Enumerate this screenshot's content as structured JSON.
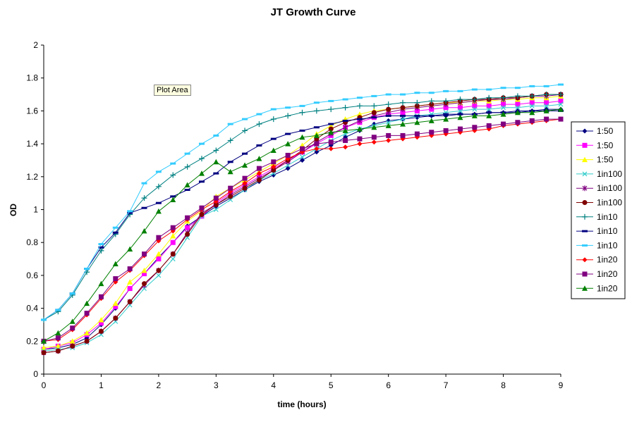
{
  "tooltip": "Plot Area",
  "chart_data": {
    "type": "line",
    "title": "JT Growth Curve",
    "xlabel": "time (hours)",
    "ylabel": "OD",
    "xlim": [
      0,
      9
    ],
    "ylim": [
      0,
      2
    ],
    "xticks": [
      "0",
      "1",
      "2",
      "3",
      "4",
      "5",
      "6",
      "7",
      "8",
      "9"
    ],
    "yticks": [
      "0",
      "0.2",
      "0.4",
      "0.6",
      "0.8",
      "1",
      "1.2",
      "1.4",
      "1.6",
      "1.8",
      "2"
    ],
    "grid": false,
    "legend_position": "right",
    "x": [
      0,
      0.25,
      0.5,
      0.75,
      1,
      1.25,
      1.5,
      1.75,
      2,
      2.25,
      2.5,
      2.75,
      3,
      3.25,
      3.5,
      3.75,
      4,
      4.25,
      4.5,
      4.75,
      5,
      5.25,
      5.5,
      5.75,
      6,
      6.25,
      6.5,
      6.75,
      7,
      7.25,
      7.5,
      7.75,
      8,
      8.25,
      8.5,
      8.75,
      9
    ],
    "series": [
      {
        "name": "1:50",
        "color": "#000080",
        "marker": "diamond",
        "values": [
          0.15,
          0.16,
          0.18,
          0.22,
          0.3,
          0.4,
          0.52,
          0.61,
          0.71,
          0.8,
          0.9,
          0.96,
          1.02,
          1.07,
          1.12,
          1.17,
          1.21,
          1.25,
          1.3,
          1.35,
          1.39,
          1.44,
          1.48,
          1.52,
          1.54,
          1.55,
          1.56,
          1.57,
          1.57,
          1.58,
          1.58,
          1.59,
          1.59,
          1.6,
          1.6,
          1.61,
          1.61
        ]
      },
      {
        "name": "1:50",
        "color": "#ff00ff",
        "marker": "square",
        "values": [
          0.15,
          0.17,
          0.19,
          0.24,
          0.31,
          0.41,
          0.52,
          0.61,
          0.7,
          0.8,
          0.89,
          0.96,
          1.04,
          1.1,
          1.15,
          1.2,
          1.25,
          1.3,
          1.35,
          1.4,
          1.45,
          1.5,
          1.53,
          1.56,
          1.58,
          1.59,
          1.6,
          1.61,
          1.62,
          1.62,
          1.63,
          1.63,
          1.64,
          1.64,
          1.65,
          1.65,
          1.66
        ]
      },
      {
        "name": "1:50",
        "color": "#ffff00",
        "marker": "triangle",
        "values": [
          0.16,
          0.17,
          0.2,
          0.25,
          0.33,
          0.43,
          0.56,
          0.63,
          0.73,
          0.84,
          0.93,
          0.99,
          1.08,
          1.13,
          1.18,
          1.23,
          1.28,
          1.33,
          1.39,
          1.46,
          1.51,
          1.55,
          1.58,
          1.6,
          1.61,
          1.62,
          1.63,
          1.64,
          1.65,
          1.65,
          1.66,
          1.66,
          1.67,
          1.67,
          1.68,
          1.68,
          1.69
        ]
      },
      {
        "name": "1in100",
        "color": "#33cccc",
        "marker": "x",
        "values": [
          0.14,
          0.15,
          0.16,
          0.19,
          0.24,
          0.32,
          0.42,
          0.52,
          0.6,
          0.7,
          0.83,
          0.96,
          1.0,
          1.06,
          1.12,
          1.18,
          1.22,
          1.27,
          1.32,
          1.37,
          1.42,
          1.46,
          1.49,
          1.51,
          1.53,
          1.55,
          1.57,
          1.58,
          1.59,
          1.6,
          1.61,
          1.61,
          1.62,
          1.62,
          1.63,
          1.63,
          1.64
        ]
      },
      {
        "name": "1in100",
        "color": "#800080",
        "marker": "star",
        "values": [
          0.13,
          0.14,
          0.17,
          0.2,
          0.26,
          0.34,
          0.44,
          0.54,
          0.63,
          0.73,
          0.86,
          0.98,
          1.03,
          1.09,
          1.14,
          1.19,
          1.24,
          1.29,
          1.35,
          1.41,
          1.46,
          1.5,
          1.54,
          1.57,
          1.59,
          1.61,
          1.62,
          1.63,
          1.64,
          1.65,
          1.66,
          1.67,
          1.67,
          1.68,
          1.69,
          1.69,
          1.7
        ]
      },
      {
        "name": "1in100",
        "color": "#800000",
        "marker": "circle",
        "values": [
          0.13,
          0.14,
          0.17,
          0.2,
          0.26,
          0.34,
          0.44,
          0.55,
          0.63,
          0.73,
          0.85,
          0.97,
          1.03,
          1.08,
          1.13,
          1.18,
          1.24,
          1.3,
          1.36,
          1.43,
          1.49,
          1.53,
          1.56,
          1.59,
          1.61,
          1.62,
          1.63,
          1.64,
          1.65,
          1.66,
          1.67,
          1.67,
          1.68,
          1.68,
          1.69,
          1.7,
          1.7
        ]
      },
      {
        "name": "1in10",
        "color": "#008080",
        "marker": "plus",
        "values": [
          0.33,
          0.38,
          0.48,
          0.62,
          0.75,
          0.85,
          0.97,
          1.07,
          1.14,
          1.21,
          1.26,
          1.31,
          1.36,
          1.42,
          1.48,
          1.52,
          1.55,
          1.57,
          1.59,
          1.6,
          1.61,
          1.62,
          1.63,
          1.63,
          1.64,
          1.65,
          1.65,
          1.66,
          1.66,
          1.67,
          1.67,
          1.68,
          1.68,
          1.69,
          1.69,
          1.7,
          1.7
        ]
      },
      {
        "name": "1in10",
        "color": "#000080",
        "marker": "dash",
        "values": [
          0.33,
          0.39,
          0.49,
          0.64,
          0.77,
          0.86,
          0.98,
          1.01,
          1.04,
          1.08,
          1.12,
          1.17,
          1.22,
          1.29,
          1.34,
          1.39,
          1.43,
          1.46,
          1.48,
          1.5,
          1.52,
          1.54,
          1.55,
          1.56,
          1.57,
          1.57,
          1.57,
          1.57,
          1.58,
          1.58,
          1.58,
          1.59,
          1.59,
          1.59,
          1.6,
          1.6,
          1.6
        ]
      },
      {
        "name": "1in10",
        "color": "#33ccff",
        "marker": "dash",
        "values": [
          0.33,
          0.39,
          0.49,
          0.64,
          0.79,
          0.89,
          0.99,
          1.16,
          1.23,
          1.28,
          1.34,
          1.4,
          1.45,
          1.52,
          1.55,
          1.58,
          1.61,
          1.62,
          1.63,
          1.65,
          1.66,
          1.67,
          1.68,
          1.69,
          1.7,
          1.7,
          1.71,
          1.71,
          1.72,
          1.72,
          1.73,
          1.73,
          1.74,
          1.74,
          1.75,
          1.75,
          1.76
        ]
      },
      {
        "name": "1in20",
        "color": "#ff0000",
        "marker": "diamond",
        "values": [
          0.2,
          0.21,
          0.27,
          0.36,
          0.46,
          0.56,
          0.63,
          0.72,
          0.81,
          0.87,
          0.94,
          1.0,
          1.05,
          1.11,
          1.16,
          1.22,
          1.26,
          1.31,
          1.35,
          1.37,
          1.37,
          1.38,
          1.4,
          1.41,
          1.42,
          1.43,
          1.44,
          1.45,
          1.46,
          1.47,
          1.48,
          1.49,
          1.51,
          1.52,
          1.53,
          1.54,
          1.55
        ]
      },
      {
        "name": "1in20",
        "color": "#800080",
        "marker": "square",
        "values": [
          0.2,
          0.22,
          0.28,
          0.37,
          0.47,
          0.58,
          0.64,
          0.73,
          0.83,
          0.89,
          0.95,
          1.01,
          1.07,
          1.13,
          1.19,
          1.25,
          1.29,
          1.33,
          1.37,
          1.4,
          1.41,
          1.42,
          1.43,
          1.44,
          1.45,
          1.45,
          1.46,
          1.47,
          1.48,
          1.49,
          1.5,
          1.51,
          1.52,
          1.53,
          1.54,
          1.55,
          1.55
        ]
      },
      {
        "name": "1in20",
        "color": "#008000",
        "marker": "triangle",
        "values": [
          0.2,
          0.25,
          0.32,
          0.43,
          0.55,
          0.67,
          0.76,
          0.87,
          0.99,
          1.06,
          1.15,
          1.22,
          1.29,
          1.23,
          1.27,
          1.31,
          1.36,
          1.4,
          1.44,
          1.45,
          1.47,
          1.48,
          1.49,
          1.5,
          1.51,
          1.52,
          1.53,
          1.54,
          1.55,
          1.56,
          1.57,
          1.57,
          1.58,
          1.59,
          1.59,
          1.6,
          1.61
        ]
      }
    ]
  }
}
